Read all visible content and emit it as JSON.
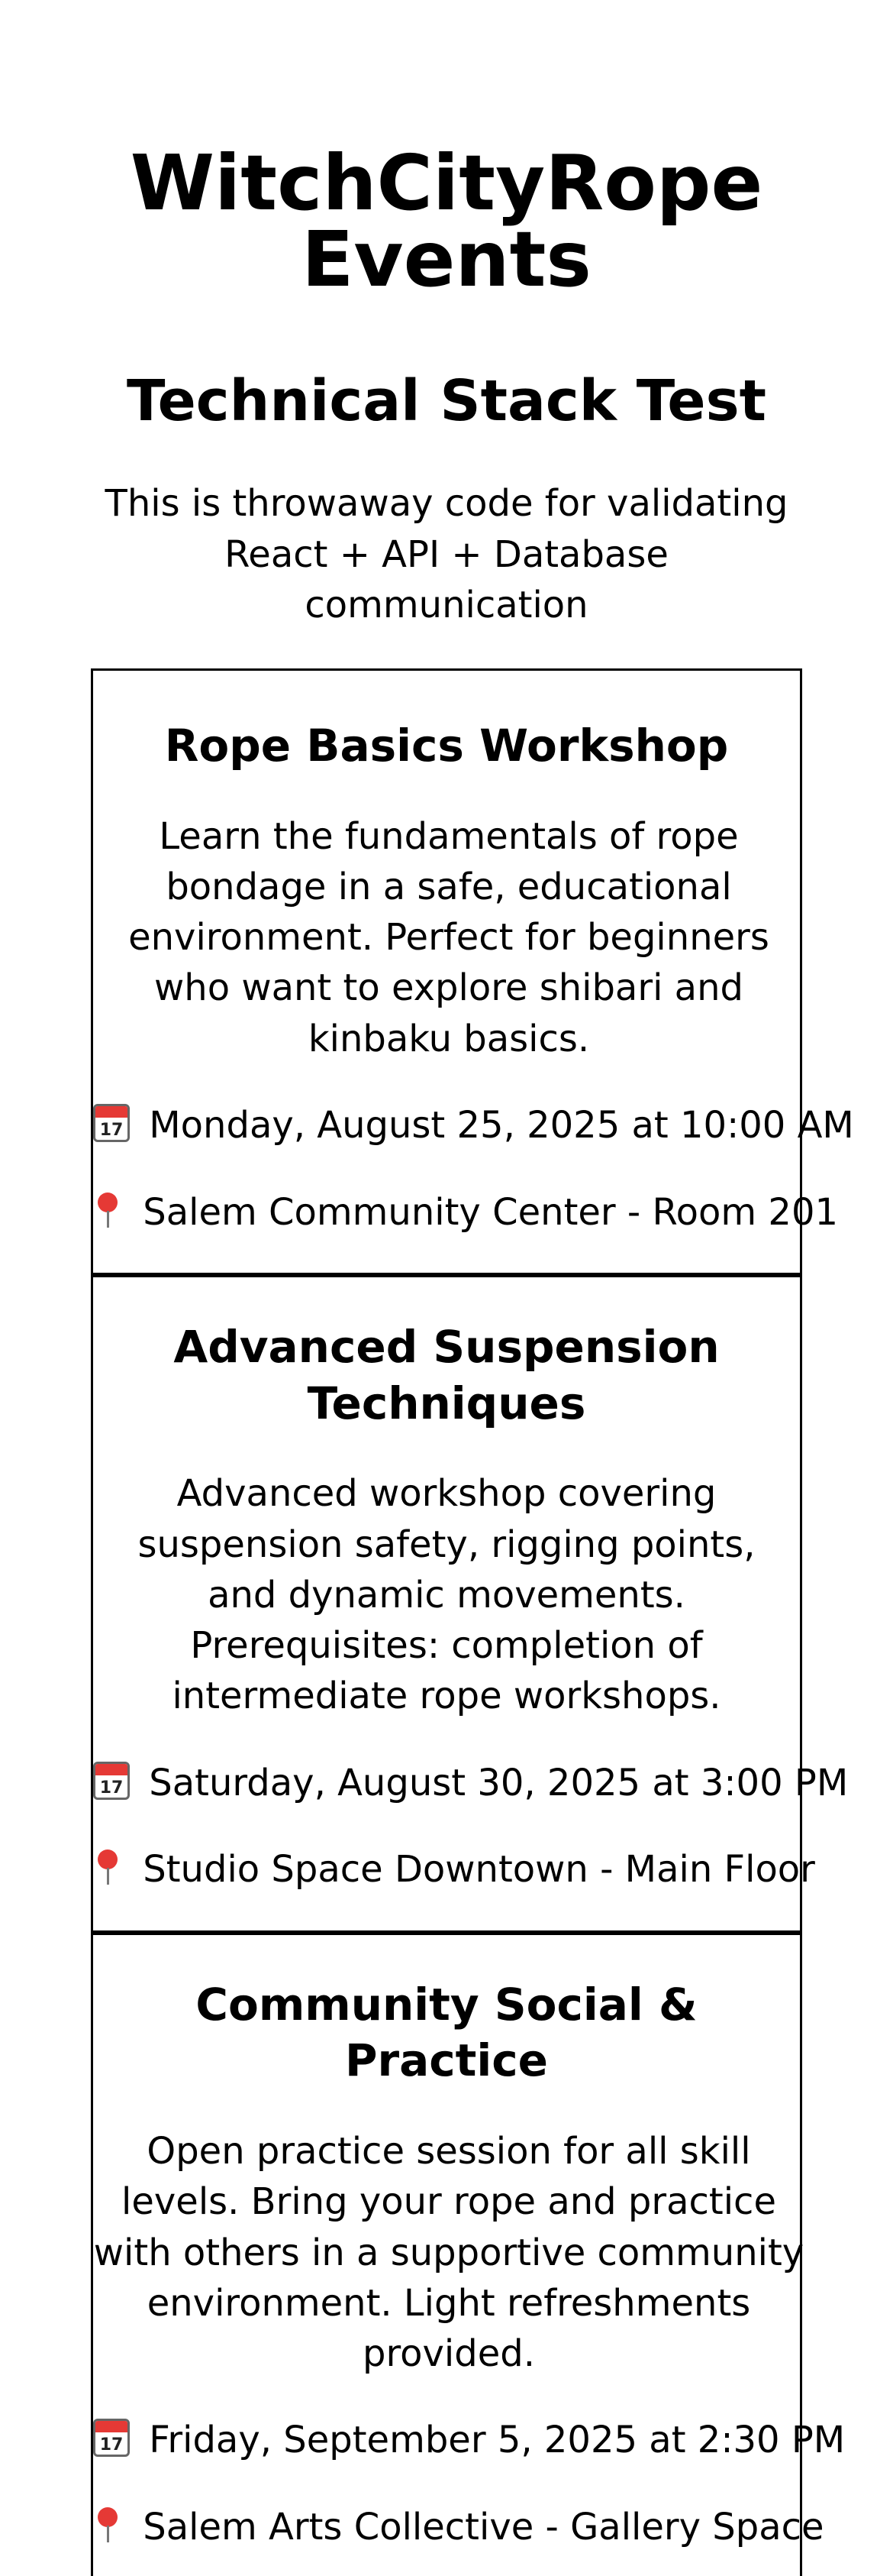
{
  "header": {
    "app_title": "WitchCityRope Events",
    "subtitle": "Technical Stack Test",
    "description": "This is throwaway code for validating React + API + Database communication"
  },
  "icons": {
    "date": "calendar-icon",
    "location": "pin-icon"
  },
  "events": [
    {
      "title": "Rope Basics Workshop",
      "description": "Learn the fundamentals of rope bondage in a safe, educational environment. Perfect for beginners who want to explore shibari and kinbaku basics.",
      "datetime": "Monday, August 25, 2025 at 10:00 AM",
      "location": "Salem Community Center - Room 201"
    },
    {
      "title": "Advanced Suspension Techniques",
      "description": "Advanced workshop covering suspension safety, rigging points, and dynamic movements. Prerequisites: completion of intermediate rope workshops.",
      "datetime": "Saturday, August 30, 2025 at 3:00 PM",
      "location": "Studio Space Downtown - Main Floor"
    },
    {
      "title": "Community Social & Practice",
      "description": "Open practice session for all skill levels. Bring your rope and practice with others in a supportive community environment. Light refreshments provided.",
      "datetime": "Friday, September 5, 2025 at 2:30 PM",
      "location": "Salem Arts Collective - Gallery Space"
    }
  ]
}
